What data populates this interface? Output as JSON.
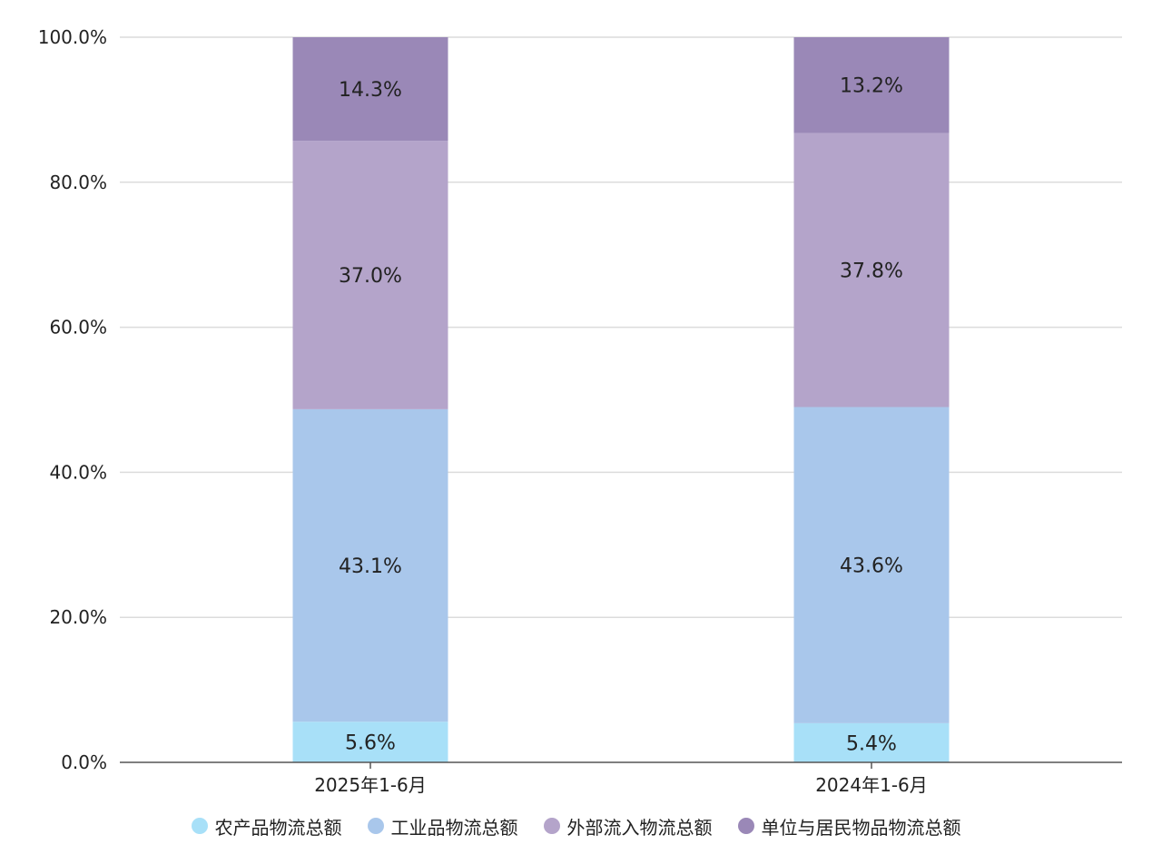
{
  "chart_data": {
    "type": "bar",
    "stacked": true,
    "categories": [
      "2025年1-6月",
      "2024年1-6月"
    ],
    "series": [
      {
        "name": "农产品物流总额",
        "values": [
          5.6,
          5.4
        ],
        "labels": [
          "5.6%",
          "5.4%"
        ],
        "color": "#A8E0F8"
      },
      {
        "name": "工业品物流总额",
        "values": [
          43.1,
          43.6
        ],
        "labels": [
          "43.1%",
          "43.6%"
        ],
        "color": "#A9C7EB"
      },
      {
        "name": "外部流入物流总额",
        "values": [
          37.0,
          37.8
        ],
        "labels": [
          "37.0%",
          "37.8%"
        ],
        "color": "#B4A4CA"
      },
      {
        "name": "单位与居民物品物流总额",
        "values": [
          14.3,
          13.2
        ],
        "labels": [
          "14.3%",
          "13.2%"
        ],
        "color": "#9A88B7"
      }
    ],
    "ylim": [
      0,
      100
    ],
    "yticks": [
      0,
      20,
      40,
      60,
      80,
      100
    ],
    "ytick_labels": [
      "0.0%",
      "20.0%",
      "40.0%",
      "60.0%",
      "80.0%",
      "100.0%"
    ],
    "grid": true,
    "legend": "bottom"
  }
}
